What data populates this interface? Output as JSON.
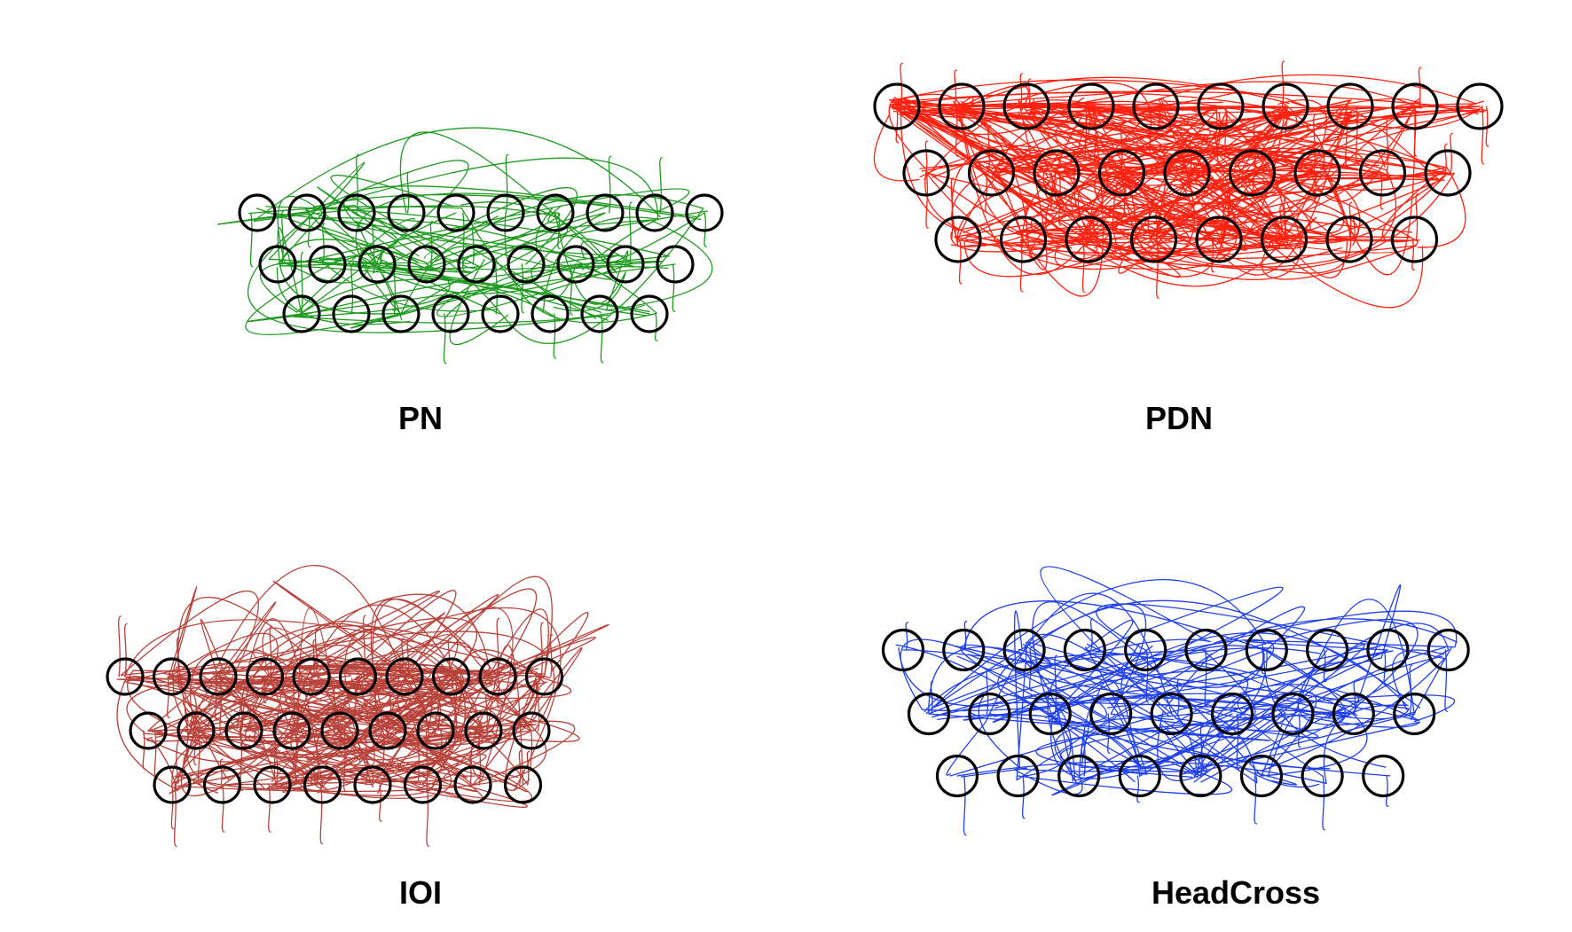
{
  "panels": [
    {
      "id": "pn",
      "label": "PN",
      "color": "#1f9a1f",
      "row_counts": [
        10,
        9,
        8
      ]
    },
    {
      "id": "pdn",
      "label": "PDN",
      "color": "#ff2010",
      "row_counts": [
        10,
        9,
        8
      ]
    },
    {
      "id": "ioi",
      "label": "IOI",
      "color": "#b8423a",
      "row_counts": [
        10,
        9,
        8
      ]
    },
    {
      "id": "headcross",
      "label": "HeadCross",
      "color": "#2040ee",
      "row_counts": [
        10,
        9,
        8
      ]
    }
  ]
}
